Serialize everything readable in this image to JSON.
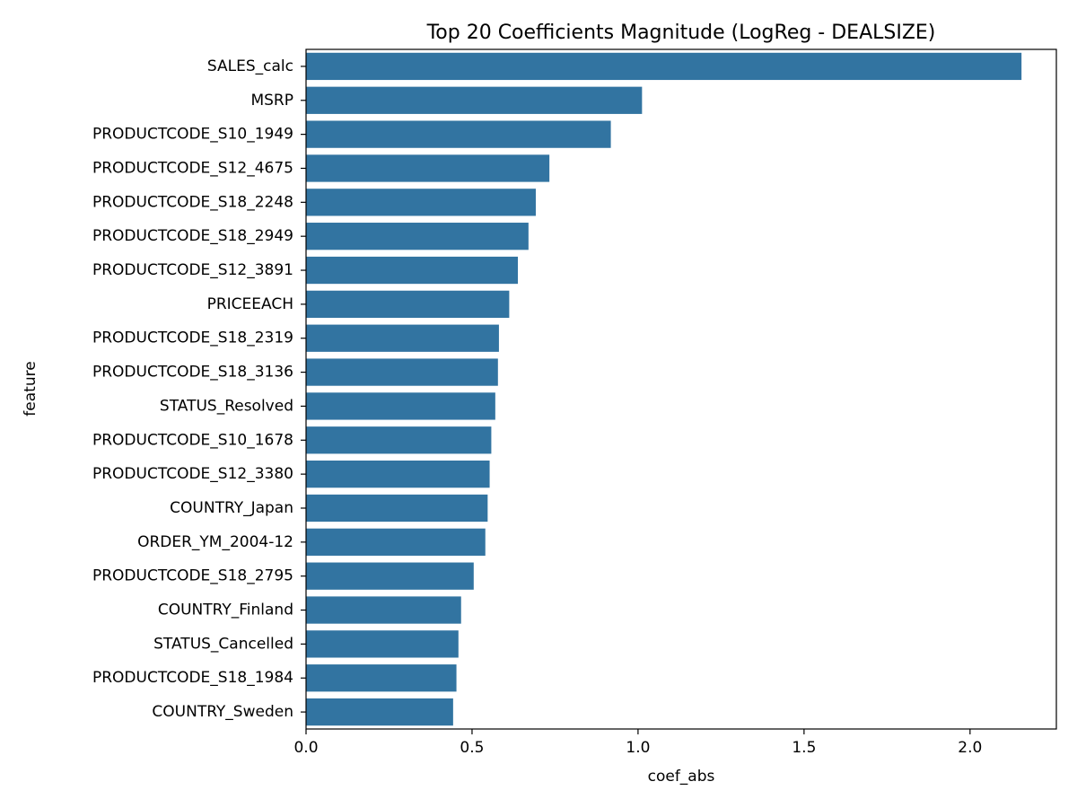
{
  "chart_data": {
    "type": "bar",
    "orientation": "horizontal",
    "title": "Top 20 Coefficients Magnitude (LogReg - DEALSIZE)",
    "xlabel": "coef_abs",
    "ylabel": "feature",
    "xlim": [
      0,
      2.26
    ],
    "xticks": [
      0.0,
      0.5,
      1.0,
      1.5,
      2.0
    ],
    "xtick_labels": [
      "0.0",
      "0.5",
      "1.0",
      "1.5",
      "2.0"
    ],
    "grid": false,
    "bar_color": "#3274a1",
    "categories": [
      "SALES_calc",
      "MSRP",
      "PRODUCTCODE_S10_1949",
      "PRODUCTCODE_S12_4675",
      "PRODUCTCODE_S18_2248",
      "PRODUCTCODE_S18_2949",
      "PRODUCTCODE_S12_3891",
      "PRICEEACH",
      "PRODUCTCODE_S18_2319",
      "PRODUCTCODE_S18_3136",
      "STATUS_Resolved",
      "PRODUCTCODE_S10_1678",
      "PRODUCTCODE_S12_3380",
      "COUNTRY_Japan",
      "ORDER_YM_2004-12",
      "PRODUCTCODE_S18_2795",
      "COUNTRY_Finland",
      "STATUS_Cancelled",
      "PRODUCTCODE_S18_1984",
      "COUNTRY_Sweden"
    ],
    "values": [
      2.155,
      1.012,
      0.918,
      0.733,
      0.692,
      0.67,
      0.638,
      0.612,
      0.581,
      0.578,
      0.57,
      0.558,
      0.553,
      0.547,
      0.54,
      0.505,
      0.467,
      0.459,
      0.453,
      0.443
    ]
  }
}
